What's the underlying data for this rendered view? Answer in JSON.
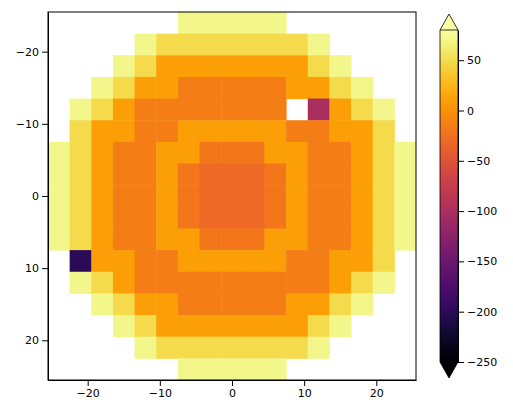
{
  "chart_data": {
    "type": "heatmap",
    "color": "inferno",
    "x": [
      -24,
      -21,
      -18,
      -15,
      -12,
      -9,
      -6,
      -3,
      0,
      3,
      6,
      9,
      12,
      15,
      18,
      21,
      24
    ],
    "y": [
      -24,
      -21,
      -18,
      -15,
      -12,
      -9,
      -6,
      -3,
      0,
      3,
      6,
      9,
      12,
      15,
      18,
      21,
      24
    ],
    "z": [
      [
        null,
        null,
        null,
        null,
        null,
        null,
        70,
        70,
        70,
        70,
        70,
        null,
        null,
        null,
        null,
        null,
        null
      ],
      [
        null,
        null,
        null,
        null,
        70,
        50,
        50,
        50,
        50,
        50,
        50,
        50,
        70,
        null,
        null,
        null,
        null
      ],
      [
        null,
        null,
        null,
        70,
        50,
        10,
        10,
        10,
        10,
        10,
        10,
        10,
        50,
        70,
        null,
        null,
        null
      ],
      [
        null,
        null,
        70,
        50,
        10,
        10,
        -15,
        -15,
        -15,
        -15,
        -15,
        10,
        10,
        50,
        70,
        null,
        null
      ],
      [
        null,
        70,
        50,
        10,
        -15,
        -15,
        -15,
        -15,
        -15,
        -15,
        -15,
        null,
        -100,
        10,
        50,
        70,
        null
      ],
      [
        null,
        50,
        10,
        10,
        -15,
        -15,
        10,
        10,
        10,
        10,
        10,
        -15,
        -15,
        10,
        10,
        50,
        null
      ],
      [
        70,
        50,
        10,
        -15,
        -15,
        10,
        10,
        -20,
        -20,
        -20,
        10,
        10,
        -15,
        -15,
        10,
        50,
        70
      ],
      [
        70,
        50,
        10,
        -15,
        -15,
        10,
        -20,
        -30,
        -30,
        -30,
        -20,
        10,
        -15,
        -15,
        10,
        50,
        70
      ],
      [
        70,
        50,
        10,
        -15,
        -15,
        10,
        -20,
        -30,
        -30,
        -30,
        -20,
        10,
        -15,
        -15,
        10,
        50,
        70
      ],
      [
        70,
        50,
        10,
        -15,
        -15,
        10,
        -20,
        -30,
        -30,
        -30,
        -20,
        10,
        -15,
        -15,
        10,
        50,
        70
      ],
      [
        70,
        50,
        10,
        -15,
        -15,
        10,
        10,
        -20,
        -20,
        -20,
        10,
        10,
        -15,
        -15,
        10,
        50,
        70
      ],
      [
        null,
        -200,
        10,
        10,
        -15,
        -15,
        10,
        10,
        10,
        10,
        10,
        -15,
        -15,
        10,
        10,
        50,
        null
      ],
      [
        null,
        70,
        50,
        10,
        -15,
        -15,
        -15,
        -15,
        -15,
        -15,
        -15,
        -15,
        -15,
        10,
        50,
        70,
        null
      ],
      [
        null,
        null,
        70,
        50,
        10,
        10,
        -15,
        -15,
        -15,
        -15,
        -15,
        10,
        10,
        50,
        70,
        null,
        null
      ],
      [
        null,
        null,
        null,
        70,
        50,
        10,
        10,
        10,
        10,
        10,
        10,
        10,
        50,
        70,
        null,
        null,
        null
      ],
      [
        null,
        null,
        null,
        null,
        70,
        50,
        50,
        50,
        50,
        50,
        50,
        50,
        70,
        null,
        null,
        null,
        null
      ],
      [
        null,
        null,
        null,
        null,
        null,
        null,
        70,
        70,
        70,
        70,
        70,
        null,
        null,
        null,
        null,
        null,
        null
      ]
    ],
    "xlim": [
      -25.5,
      25.5
    ],
    "ylim": [
      25.5,
      -25.5
    ],
    "xticks": [
      {
        "value": -20,
        "label": "−20"
      },
      {
        "value": -10,
        "label": "−10"
      },
      0,
      10,
      20
    ],
    "yticks": [
      {
        "value": -20,
        "label": "−20"
      },
      {
        "value": -10,
        "label": "−10"
      },
      0,
      10,
      20
    ],
    "colorbar": {
      "range": [
        -250,
        80
      ],
      "ticks": [
        {
          "value": -250,
          "label": "−250"
        },
        {
          "value": -200,
          "label": "−200"
        },
        {
          "value": -150,
          "label": "−150"
        },
        {
          "value": -100,
          "label": "−100"
        },
        {
          "value": -50,
          "label": "−50"
        },
        0,
        50
      ]
    }
  }
}
